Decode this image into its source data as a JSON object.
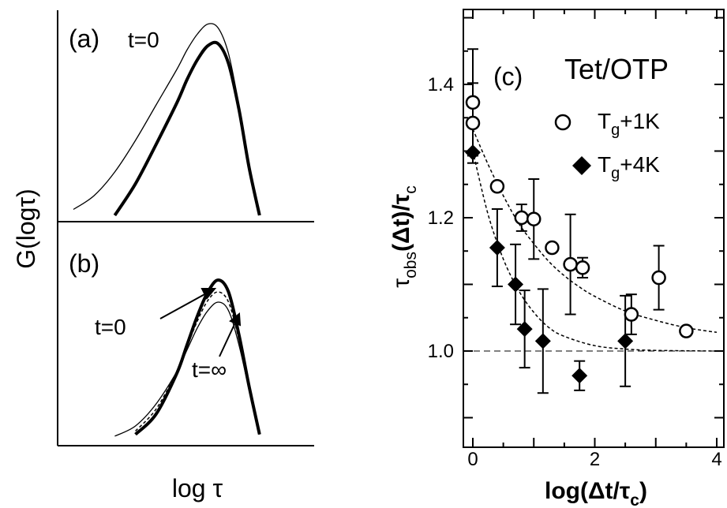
{
  "chart_data": [
    {
      "type": "line",
      "panel": "a",
      "panel_label": "(a)",
      "annotation": "t=0",
      "xlabel": "log τ",
      "ylabel": "G(logτ)",
      "x": [
        0.0,
        0.1,
        0.2,
        0.3,
        0.4,
        0.5,
        0.55,
        0.6,
        0.65,
        0.7,
        0.75,
        0.8,
        0.85,
        0.9
      ],
      "series": [
        {
          "style": "thin",
          "values": [
            0.05,
            0.12,
            0.24,
            0.4,
            0.58,
            0.76,
            0.86,
            0.94,
            0.99,
            0.97,
            0.84,
            0.58,
            0.27,
            0.03
          ]
        },
        {
          "style": "thick",
          "values": [
            null,
            null,
            0.02,
            0.18,
            0.38,
            0.59,
            0.71,
            0.81,
            0.88,
            0.89,
            0.79,
            0.56,
            0.26,
            0.02
          ]
        }
      ]
    },
    {
      "type": "line",
      "panel": "b",
      "panel_label": "(b)",
      "annotations": [
        "t=0",
        "t=∞"
      ],
      "x": [
        0.0,
        0.1,
        0.2,
        0.3,
        0.4,
        0.5,
        0.55,
        0.6,
        0.65,
        0.7,
        0.75,
        0.8,
        0.85,
        0.9
      ],
      "series": [
        {
          "style": "thick",
          "values": [
            null,
            null,
            null,
            0.02,
            0.14,
            0.38,
            0.55,
            0.72,
            0.86,
            0.93,
            0.86,
            0.61,
            0.3,
            0.02
          ]
        },
        {
          "style": "dashed",
          "values": [
            null,
            null,
            null,
            0.04,
            0.17,
            0.39,
            0.54,
            0.69,
            0.81,
            0.86,
            0.8,
            0.58,
            0.29,
            0.02
          ]
        },
        {
          "style": "thin",
          "values": [
            null,
            null,
            0.01,
            0.07,
            0.2,
            0.39,
            0.52,
            0.65,
            0.75,
            0.8,
            0.75,
            0.55,
            0.28,
            0.02
          ]
        }
      ]
    },
    {
      "type": "scatter",
      "panel": "c",
      "panel_label": "(c)",
      "title": "Tet/OTP",
      "xlabel": "log(Δt/τc)",
      "ylabel": "τobs(Δt)/τc",
      "xlim": [
        -0.2,
        4.2
      ],
      "ylim": [
        0.88,
        1.54
      ],
      "xticks": [
        0,
        2,
        4
      ],
      "yticks": [
        1.0,
        1.2,
        1.4
      ],
      "reference_line": 1.0,
      "legend_position": "top-right",
      "series": [
        {
          "name": "Tg+1K",
          "marker": "open-circle",
          "points": [
            {
              "x": 0.0,
              "y": 1.373,
              "err": 0.08
            },
            {
              "x": 0.0,
              "y": 1.342,
              "err": 0.06
            },
            {
              "x": 0.4,
              "y": 1.247,
              "err": 0.0
            },
            {
              "x": 0.8,
              "y": 1.2,
              "err": 0.02
            },
            {
              "x": 1.0,
              "y": 1.198,
              "err": 0.06
            },
            {
              "x": 1.3,
              "y": 1.155,
              "err": 0.0
            },
            {
              "x": 1.6,
              "y": 1.13,
              "err": 0.075
            },
            {
              "x": 1.8,
              "y": 1.125,
              "err": 0.015
            },
            {
              "x": 2.6,
              "y": 1.055,
              "err": 0.03
            },
            {
              "x": 3.05,
              "y": 1.11,
              "err": 0.048
            },
            {
              "x": 3.5,
              "y": 1.03,
              "err": 0.0
            }
          ],
          "fit": {
            "x": [
              0.0,
              0.25,
              0.5,
              0.75,
              1.0,
              1.25,
              1.5,
              1.75,
              2.0,
              2.5,
              3.0,
              3.5,
              4.0
            ],
            "y": [
              1.333,
              1.28,
              1.233,
              1.192,
              1.161,
              1.134,
              1.113,
              1.096,
              1.082,
              1.06,
              1.046,
              1.035,
              1.028
            ]
          }
        },
        {
          "name": "Tg+4K",
          "marker": "filled-diamond",
          "points": [
            {
              "x": 0.0,
              "y": 1.298,
              "err": 0.0
            },
            {
              "x": 0.4,
              "y": 1.155,
              "err": 0.058
            },
            {
              "x": 0.7,
              "y": 1.1,
              "err": 0.06
            },
            {
              "x": 0.85,
              "y": 1.033,
              "err": 0.058
            },
            {
              "x": 1.15,
              "y": 1.015,
              "err": 0.078
            },
            {
              "x": 1.75,
              "y": 0.963,
              "err": 0.022
            },
            {
              "x": 2.5,
              "y": 1.015,
              "err": 0.068
            }
          ],
          "fit": {
            "x": [
              0.0,
              0.25,
              0.5,
              0.75,
              1.0,
              1.25,
              1.5,
              2.0,
              2.5,
              3.0,
              4.0
            ],
            "y": [
              1.3,
              1.205,
              1.138,
              1.091,
              1.058,
              1.035,
              1.022,
              1.008,
              1.003,
              1.001,
              1.0
            ]
          }
        }
      ]
    }
  ],
  "legend": {
    "item1": {
      "base": "T",
      "sub": "g",
      "rest": "+1K"
    },
    "item2": {
      "base": "T",
      "sub": "g",
      "rest": "+4K"
    }
  },
  "axis_labels": {
    "c_y_main": "τ",
    "c_y_sub1": "obs",
    "c_y_mid": "(Δt)/τ",
    "c_y_sub2": "c",
    "c_x_main": "log(Δt/τ",
    "c_x_sub": "c",
    "c_x_end": ")"
  },
  "colors": {
    "ink": "#000000",
    "background": "#ffffff"
  }
}
